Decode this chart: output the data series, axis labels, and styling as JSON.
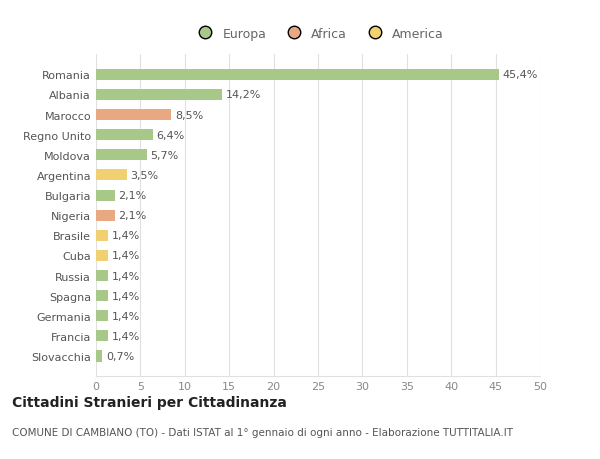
{
  "countries": [
    "Romania",
    "Albania",
    "Marocco",
    "Regno Unito",
    "Moldova",
    "Argentina",
    "Bulgaria",
    "Nigeria",
    "Brasile",
    "Cuba",
    "Russia",
    "Spagna",
    "Germania",
    "Francia",
    "Slovacchia"
  ],
  "values": [
    45.4,
    14.2,
    8.5,
    6.4,
    5.7,
    3.5,
    2.1,
    2.1,
    1.4,
    1.4,
    1.4,
    1.4,
    1.4,
    1.4,
    0.7
  ],
  "labels": [
    "45,4%",
    "14,2%",
    "8,5%",
    "6,4%",
    "5,7%",
    "3,5%",
    "2,1%",
    "2,1%",
    "1,4%",
    "1,4%",
    "1,4%",
    "1,4%",
    "1,4%",
    "1,4%",
    "0,7%"
  ],
  "colors": [
    "#a8c88a",
    "#a8c88a",
    "#e8a882",
    "#a8c88a",
    "#a8c88a",
    "#f0d070",
    "#a8c88a",
    "#e8a882",
    "#f0d070",
    "#f0d070",
    "#a8c88a",
    "#a8c88a",
    "#a8c88a",
    "#a8c88a",
    "#a8c88a"
  ],
  "legend": [
    {
      "label": "Europa",
      "color": "#a8c88a"
    },
    {
      "label": "Africa",
      "color": "#e8a882"
    },
    {
      "label": "America",
      "color": "#f0d070"
    }
  ],
  "xlim": [
    0,
    50
  ],
  "xticks": [
    0,
    5,
    10,
    15,
    20,
    25,
    30,
    35,
    40,
    45,
    50
  ],
  "title": "Cittadini Stranieri per Cittadinanza",
  "subtitle": "COMUNE DI CAMBIANO (TO) - Dati ISTAT al 1° gennaio di ogni anno - Elaborazione TUTTITALIA.IT",
  "bg_color": "#ffffff",
  "grid_color": "#e0e0e0",
  "bar_height": 0.55,
  "label_fontsize": 8,
  "tick_fontsize": 8,
  "legend_fontsize": 9,
  "title_fontsize": 10,
  "subtitle_fontsize": 7.5
}
